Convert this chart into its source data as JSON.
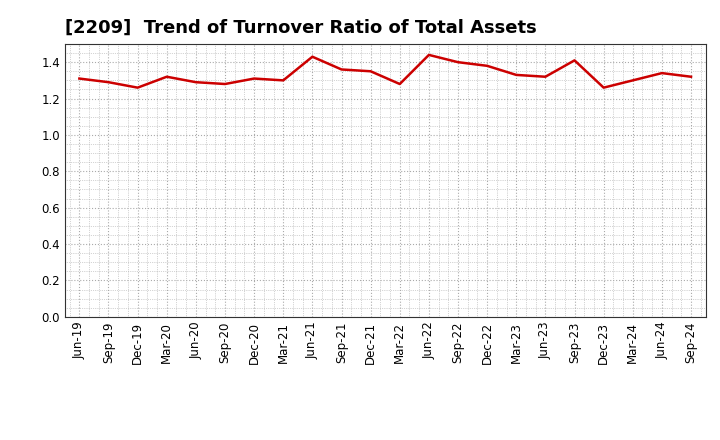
{
  "title": "[2209]  Trend of Turnover Ratio of Total Assets",
  "x_labels": [
    "Jun-19",
    "Sep-19",
    "Dec-19",
    "Mar-20",
    "Jun-20",
    "Sep-20",
    "Dec-20",
    "Mar-21",
    "Jun-21",
    "Sep-21",
    "Dec-21",
    "Mar-22",
    "Jun-22",
    "Sep-22",
    "Dec-22",
    "Mar-23",
    "Jun-23",
    "Sep-23",
    "Dec-23",
    "Mar-24",
    "Jun-24",
    "Sep-24"
  ],
  "y_values": [
    1.31,
    1.29,
    1.26,
    1.32,
    1.29,
    1.28,
    1.31,
    1.3,
    1.43,
    1.36,
    1.35,
    1.28,
    1.44,
    1.4,
    1.38,
    1.33,
    1.32,
    1.41,
    1.26,
    1.3,
    1.34,
    1.32
  ],
  "line_color": "#cc0000",
  "line_width": 1.8,
  "ylim": [
    0.0,
    1.5
  ],
  "yticks": [
    0.0,
    0.2,
    0.4,
    0.6,
    0.8,
    1.0,
    1.2,
    1.4
  ],
  "grid_color": "#aaaaaa",
  "background_color": "#ffffff",
  "title_fontsize": 13,
  "tick_fontsize": 8.5
}
